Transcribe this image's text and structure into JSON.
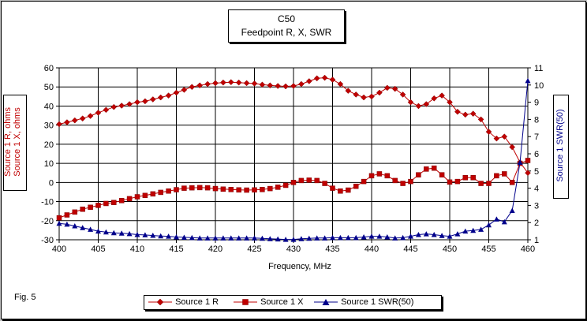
{
  "title_line1": "C50",
  "title_line2": "Feedpoint R, X, SWR",
  "xlabel": "Frequency, MHz",
  "ylabel_left_1": "Source 1 R,  ohms",
  "ylabel_left_2": "Source 1 X,  ohms",
  "ylabel_right": "Source 1 SWR(50)",
  "fig_label": "Fig. 5",
  "colors": {
    "r": "#c00000",
    "x": "#c00000",
    "swr": "#00008b",
    "grid": "#000000"
  },
  "chart_data": {
    "type": "line",
    "title": "C50 Feedpoint R, X, SWR",
    "xlabel": "Frequency, MHz",
    "ylabel": "Source 1 R, ohms / Source 1 X, ohms",
    "y2label": "Source 1 SWR(50)",
    "xlim": [
      400,
      460
    ],
    "ylim": [
      -30,
      60
    ],
    "y2lim": [
      1,
      11
    ],
    "x_ticks": [
      "400",
      "405",
      "410",
      "415",
      "420",
      "425",
      "430",
      "435",
      "440",
      "445",
      "450",
      "455",
      "460"
    ],
    "y_ticks": [
      "-30",
      "-20",
      "-10",
      "0",
      "10",
      "20",
      "30",
      "40",
      "50",
      "60"
    ],
    "y2_ticks": [
      "1",
      "2",
      "3",
      "4",
      "5",
      "6",
      "7",
      "8",
      "9",
      "10",
      "11"
    ],
    "legend": [
      "Source 1 R",
      "Source 1 X",
      "Source 1 SWR(50)"
    ],
    "legend_position": "bottom",
    "series": [
      {
        "name": "Source 1 R",
        "axis": "left",
        "marker": "diamond",
        "x": [
          400,
          401,
          402,
          403,
          404,
          405,
          406,
          407,
          408,
          409,
          410,
          411,
          412,
          413,
          414,
          415,
          416,
          417,
          418,
          419,
          420,
          421,
          422,
          423,
          424,
          425,
          426,
          427,
          428,
          429,
          430,
          431,
          432,
          433,
          434,
          435,
          436,
          437,
          438,
          439,
          440,
          441,
          442,
          443,
          444,
          445,
          446,
          447,
          448,
          449,
          450,
          451,
          452,
          453,
          454,
          455,
          456,
          457,
          458,
          459,
          460
        ],
        "values": [
          30.5,
          31.5,
          32.5,
          33.5,
          34.8,
          36.5,
          38,
          39.5,
          40.2,
          41,
          42,
          42.5,
          43.5,
          44.5,
          45.5,
          47,
          48.5,
          50,
          50.8,
          51.5,
          52,
          52.3,
          52.5,
          52.3,
          52,
          51.8,
          51.2,
          50.8,
          50.5,
          50.3,
          50.5,
          51.5,
          53,
          54.5,
          54.8,
          53.8,
          51.5,
          48,
          46,
          44.5,
          45,
          47,
          49.5,
          49,
          46,
          42,
          40,
          41,
          44,
          45.5,
          42,
          37,
          35.5,
          36,
          33,
          26.5,
          23,
          24,
          18.5,
          10.5,
          5
        ]
      },
      {
        "name": "Source 1 X",
        "axis": "left",
        "marker": "square",
        "x": [
          400,
          401,
          402,
          403,
          404,
          405,
          406,
          407,
          408,
          409,
          410,
          411,
          412,
          413,
          414,
          415,
          416,
          417,
          418,
          419,
          420,
          421,
          422,
          423,
          424,
          425,
          426,
          427,
          428,
          429,
          430,
          431,
          432,
          433,
          434,
          435,
          436,
          437,
          438,
          439,
          440,
          441,
          442,
          443,
          444,
          445,
          446,
          447,
          448,
          449,
          450,
          451,
          452,
          453,
          454,
          455,
          456,
          457,
          458,
          459,
          460
        ],
        "values": [
          -18.5,
          -17,
          -15.5,
          -14,
          -13,
          -12,
          -11,
          -10.5,
          -9.5,
          -8.5,
          -7.5,
          -6.8,
          -6,
          -5.2,
          -4.5,
          -3.8,
          -3,
          -2.8,
          -2.7,
          -2.8,
          -3.2,
          -3.5,
          -3.7,
          -3.9,
          -4,
          -3.9,
          -3.7,
          -3.2,
          -2.5,
          -1.5,
          0,
          1,
          1.2,
          1,
          -0.5,
          -3,
          -4.5,
          -4,
          -2,
          0.5,
          3.5,
          4.5,
          3.5,
          1,
          -0.5,
          0.5,
          4,
          7,
          7.5,
          4,
          0.2,
          0.5,
          2.5,
          2.5,
          -0.5,
          -0.5,
          3.5,
          4.5,
          0,
          10,
          11.5
        ]
      },
      {
        "name": "Source 1 SWR(50)",
        "axis": "right",
        "marker": "triangle",
        "x": [
          400,
          401,
          402,
          403,
          404,
          405,
          406,
          407,
          408,
          409,
          410,
          411,
          412,
          413,
          414,
          415,
          416,
          417,
          418,
          419,
          420,
          421,
          422,
          423,
          424,
          425,
          426,
          427,
          428,
          429,
          430,
          431,
          432,
          433,
          434,
          435,
          436,
          437,
          438,
          439,
          440,
          441,
          442,
          443,
          444,
          445,
          446,
          447,
          448,
          449,
          450,
          451,
          452,
          453,
          454,
          455,
          456,
          457,
          458,
          459,
          460
        ],
        "values": [
          1.95,
          1.9,
          1.8,
          1.7,
          1.6,
          1.5,
          1.45,
          1.4,
          1.38,
          1.35,
          1.3,
          1.28,
          1.25,
          1.22,
          1.2,
          1.16,
          1.14,
          1.12,
          1.1,
          1.1,
          1.1,
          1.1,
          1.1,
          1.1,
          1.1,
          1.1,
          1.08,
          1.06,
          1.04,
          1.02,
          1.02,
          1.06,
          1.08,
          1.1,
          1.1,
          1.12,
          1.12,
          1.12,
          1.12,
          1.16,
          1.2,
          1.2,
          1.16,
          1.1,
          1.12,
          1.2,
          1.3,
          1.34,
          1.3,
          1.24,
          1.2,
          1.34,
          1.5,
          1.54,
          1.6,
          1.86,
          2.2,
          2.04,
          2.7,
          5.5,
          10.25
        ]
      }
    ]
  }
}
